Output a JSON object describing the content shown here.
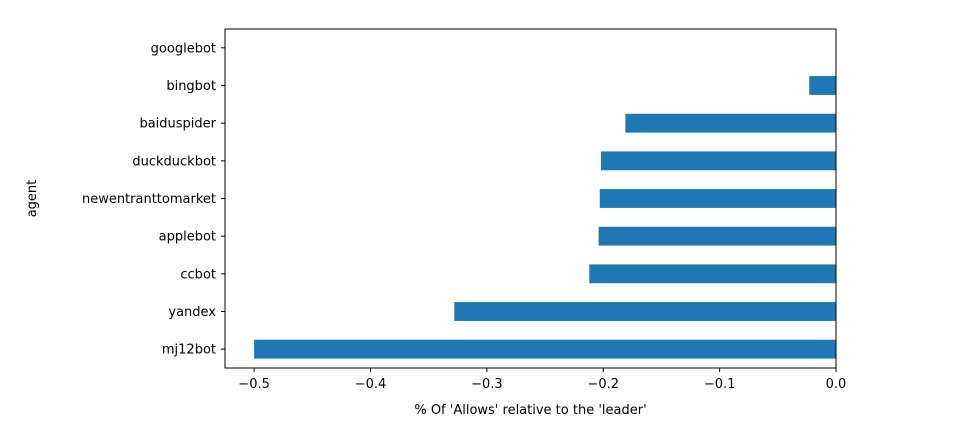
{
  "chart_data": {
    "type": "bar",
    "orientation": "horizontal",
    "title": "",
    "xlabel": "% Of 'Allows' relative to the 'leader'",
    "ylabel": "agent",
    "xlim": [
      -0.525,
      0.0
    ],
    "xticks": [
      -0.5,
      -0.4,
      -0.3,
      -0.2,
      -0.1,
      0.0
    ],
    "xtick_labels": [
      "−0.5",
      "−0.4",
      "−0.3",
      "−0.2",
      "−0.1",
      "0.0"
    ],
    "categories": [
      "googlebot",
      "bingbot",
      "baiduspider",
      "duckduckbot",
      "newentranttomarket",
      "applebot",
      "ccbot",
      "yandex",
      "mj12bot"
    ],
    "values": [
      0.0,
      -0.023,
      -0.181,
      -0.202,
      -0.203,
      -0.204,
      -0.212,
      -0.328,
      -0.5
    ],
    "bar_color": "#1f77b4",
    "grid": false,
    "legend": "none"
  }
}
